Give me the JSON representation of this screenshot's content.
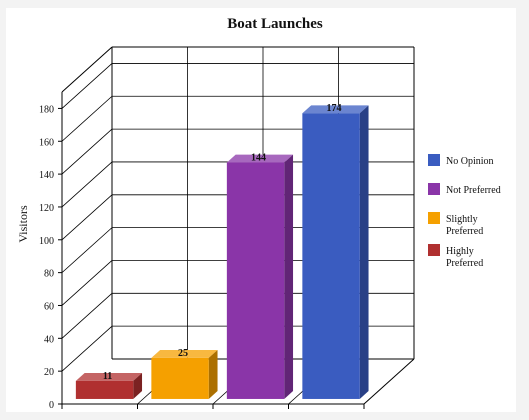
{
  "chart_data": {
    "type": "bar",
    "title": "Boat Launches",
    "ylabel": "Visitors",
    "xlabel": "",
    "ylim": [
      0,
      190
    ],
    "yticks": [
      0,
      20,
      40,
      60,
      80,
      100,
      120,
      140,
      160,
      180
    ],
    "grid": true,
    "legend_position": "right",
    "categories": [
      "Highly Preferred",
      "Slightly Preferred",
      "Not Preferred",
      "No Opinion"
    ],
    "values": [
      11,
      25,
      144,
      174
    ],
    "colors": [
      "#b03030",
      "#f5a000",
      "#8a35a8",
      "#3a5cc0"
    ],
    "legend": [
      {
        "label": "No Opinion",
        "color": "#3a5cc0"
      },
      {
        "label": "Not Preferred",
        "color": "#8a35a8"
      },
      {
        "label": "Slightly Preferred",
        "color": "#f5a000"
      },
      {
        "label": "Highly Preferred",
        "color": "#b03030"
      }
    ]
  }
}
